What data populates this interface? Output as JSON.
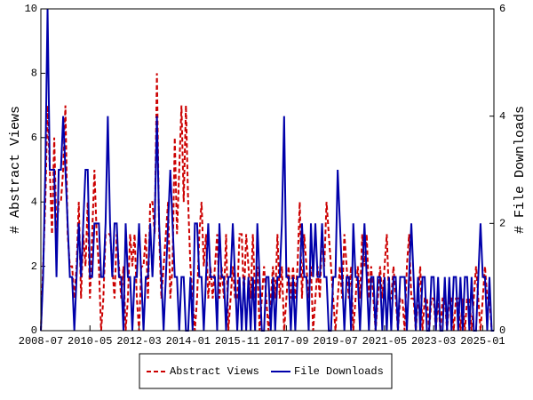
{
  "chart_data": {
    "type": "line",
    "x": [
      "2008-07",
      "2008-08",
      "2008-09",
      "2008-10",
      "2008-11",
      "2008-12",
      "2009-01",
      "2009-02",
      "2009-03",
      "2009-04",
      "2009-05",
      "2009-06",
      "2009-07",
      "2009-08",
      "2009-09",
      "2009-10",
      "2009-11",
      "2009-12",
      "2010-01",
      "2010-02",
      "2010-03",
      "2010-04",
      "2010-05",
      "2010-06",
      "2010-07",
      "2010-08",
      "2010-09",
      "2010-10",
      "2010-11",
      "2010-12",
      "2011-01",
      "2011-02",
      "2011-03",
      "2011-04",
      "2011-05",
      "2011-06",
      "2011-07",
      "2011-08",
      "2011-09",
      "2011-10",
      "2011-11",
      "2011-12",
      "2012-01",
      "2012-02",
      "2012-03",
      "2012-04",
      "2012-05",
      "2012-06",
      "2012-07",
      "2012-08",
      "2012-09",
      "2012-10",
      "2012-11",
      "2012-12",
      "2013-01",
      "2013-02",
      "2013-03",
      "2013-04",
      "2013-05",
      "2013-06",
      "2013-07",
      "2013-08",
      "2013-09",
      "2013-10",
      "2013-11",
      "2013-12",
      "2014-01",
      "2014-02",
      "2014-03",
      "2014-04",
      "2014-05",
      "2014-06",
      "2014-07",
      "2014-08",
      "2014-09",
      "2014-10",
      "2014-11",
      "2014-12",
      "2015-01",
      "2015-02",
      "2015-03",
      "2015-04",
      "2015-05",
      "2015-06",
      "2015-07",
      "2015-08",
      "2015-09",
      "2015-10",
      "2015-11",
      "2015-12",
      "2016-01",
      "2016-02",
      "2016-03",
      "2016-04",
      "2016-05",
      "2016-06",
      "2016-07",
      "2016-08",
      "2016-09",
      "2016-10",
      "2016-11",
      "2016-12",
      "2017-01",
      "2017-02",
      "2017-03",
      "2017-04",
      "2017-05",
      "2017-06",
      "2017-07",
      "2017-08",
      "2017-09",
      "2017-10",
      "2017-11",
      "2017-12",
      "2018-01",
      "2018-02",
      "2018-03",
      "2018-04",
      "2018-05",
      "2018-06",
      "2018-07",
      "2018-08",
      "2018-09",
      "2018-10",
      "2018-11",
      "2018-12",
      "2019-01",
      "2019-02",
      "2019-03",
      "2019-04",
      "2019-05",
      "2019-06",
      "2019-07",
      "2019-08",
      "2019-09",
      "2019-10",
      "2019-11",
      "2019-12",
      "2020-01",
      "2020-02",
      "2020-03",
      "2020-04",
      "2020-05",
      "2020-06",
      "2020-07",
      "2020-08",
      "2020-09",
      "2020-10",
      "2020-11",
      "2020-12",
      "2021-01",
      "2021-02",
      "2021-03",
      "2021-04",
      "2021-05",
      "2021-06",
      "2021-07",
      "2021-08",
      "2021-09",
      "2021-10",
      "2021-11",
      "2021-12",
      "2022-01",
      "2022-02",
      "2022-03",
      "2022-04",
      "2022-05",
      "2022-06",
      "2022-07",
      "2022-08",
      "2022-09",
      "2022-10",
      "2022-11",
      "2022-12",
      "2023-01",
      "2023-02",
      "2023-03",
      "2023-04",
      "2023-05",
      "2023-06",
      "2023-07",
      "2023-08",
      "2023-09",
      "2023-10",
      "2023-11",
      "2023-12",
      "2024-01",
      "2024-02",
      "2024-03",
      "2024-04",
      "2024-05",
      "2024-06",
      "2024-07",
      "2024-08",
      "2024-09",
      "2024-10",
      "2024-11",
      "2024-12",
      "2025-01",
      "2025-02",
      "2025-03",
      "2025-04",
      "2025-05",
      "2025-06"
    ],
    "xlim": [
      "2008-07",
      "2025-06"
    ],
    "xticks": [
      "2008-07",
      "2010-05",
      "2012-03",
      "2014-01",
      "2015-11",
      "2017-09",
      "2019-07",
      "2021-05",
      "2023-03",
      "2025-01"
    ],
    "ylabel": "# Abstract Views",
    "y2label": "# File Downloads",
    "ylim": [
      0,
      10
    ],
    "yticks": [
      0,
      2,
      4,
      6,
      8,
      10
    ],
    "y2lim": [
      0,
      6
    ],
    "y2ticks": [
      0,
      2,
      4,
      6
    ],
    "series": [
      {
        "name": "Abstract Views",
        "color": "#cc0000",
        "dashed": true,
        "values": [
          0,
          2,
          4,
          7,
          5,
          3,
          6,
          3,
          4,
          4,
          5,
          7,
          3,
          2,
          2,
          1,
          2,
          4,
          1,
          3,
          2,
          4,
          1,
          3,
          5,
          3,
          2,
          0,
          1,
          3,
          3,
          3,
          2,
          1,
          3,
          2,
          1,
          2,
          0,
          1,
          3,
          2,
          3,
          1,
          0,
          2,
          2,
          3,
          1,
          4,
          4,
          3,
          8,
          3,
          1,
          2,
          3,
          4,
          1,
          2,
          6,
          3,
          5,
          7,
          4,
          7,
          4,
          2,
          1,
          0,
          1,
          3,
          4,
          2,
          3,
          1,
          2,
          1,
          2,
          3,
          1,
          2,
          1,
          3,
          0,
          1,
          2,
          1,
          1,
          3,
          3,
          1,
          3,
          2,
          1,
          3,
          1,
          2,
          0,
          1,
          2,
          1,
          0,
          1,
          2,
          1,
          3,
          1,
          2,
          0,
          1,
          2,
          1,
          2,
          1,
          2,
          4,
          1,
          3,
          2,
          1,
          2,
          0,
          1,
          2,
          1,
          3,
          2,
          4,
          3,
          2,
          1,
          0,
          1,
          2,
          1,
          3,
          2,
          1,
          2,
          0,
          1,
          2,
          1,
          3,
          2,
          3,
          1,
          2,
          1,
          0,
          1,
          2,
          1,
          2,
          3,
          1,
          1,
          2,
          1,
          0,
          1,
          1,
          0,
          2,
          3,
          1,
          1,
          0,
          1,
          2,
          0,
          1,
          1,
          0,
          1,
          1,
          0,
          1,
          0,
          1,
          1,
          0,
          1,
          1,
          0,
          1,
          1,
          0,
          1,
          0,
          1,
          1,
          0,
          1,
          2,
          1,
          0,
          1,
          2,
          1,
          1,
          0,
          0
        ]
      },
      {
        "name": "File Downloads",
        "color": "#0000aa",
        "axis": "y2",
        "values": [
          0,
          1,
          3,
          6,
          3,
          3,
          3,
          1,
          3,
          3,
          4,
          3,
          2,
          1,
          1,
          0,
          1,
          2,
          1,
          2,
          3,
          3,
          1,
          1,
          2,
          2,
          2,
          1,
          1,
          2,
          4,
          2,
          1,
          2,
          2,
          1,
          1,
          0,
          2,
          1,
          1,
          0,
          1,
          1,
          2,
          1,
          0,
          1,
          1,
          2,
          1,
          2,
          4,
          2,
          1,
          0,
          1,
          2,
          3,
          2,
          1,
          1,
          0,
          1,
          1,
          0,
          0,
          1,
          0,
          2,
          2,
          1,
          1,
          0,
          1,
          2,
          1,
          1,
          1,
          0,
          2,
          1,
          1,
          0,
          1,
          1,
          2,
          1,
          0,
          1,
          0,
          1,
          0,
          1,
          0,
          1,
          0,
          2,
          1,
          0,
          0,
          1,
          1,
          0,
          1,
          0,
          1,
          1,
          2,
          4,
          1,
          1,
          0,
          1,
          0,
          1,
          1,
          2,
          1,
          1,
          0,
          2,
          1,
          2,
          1,
          1,
          2,
          1,
          1,
          0,
          0,
          1,
          1,
          3,
          2,
          1,
          0,
          1,
          1,
          0,
          2,
          1,
          1,
          0,
          1,
          2,
          1,
          0,
          1,
          1,
          0,
          1,
          1,
          0,
          1,
          0,
          1,
          0,
          1,
          1,
          0,
          1,
          1,
          1,
          0,
          1,
          2,
          1,
          0,
          1,
          0,
          1,
          1,
          0,
          0,
          1,
          1,
          0,
          1,
          0,
          0,
          1,
          0,
          1,
          0,
          1,
          1,
          0,
          1,
          0,
          1,
          1,
          0,
          1,
          0,
          0,
          1,
          2,
          1,
          1,
          0,
          1,
          0,
          0
        ]
      }
    ]
  }
}
